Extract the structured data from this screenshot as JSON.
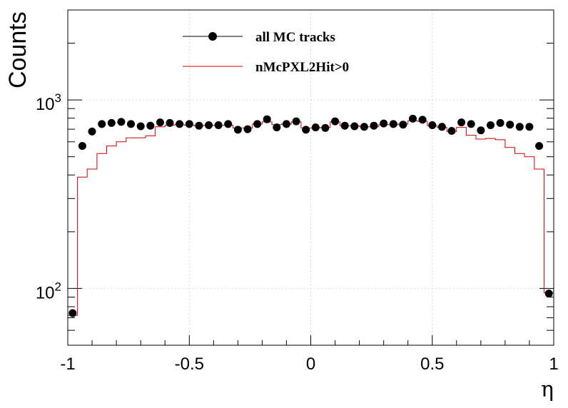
{
  "chart_data": {
    "type": "line",
    "title": "",
    "xlabel": "η",
    "ylabel": "Counts",
    "xlim": [
      -1,
      1
    ],
    "ylim": [
      50,
      3000
    ],
    "yscale": "log",
    "grid": true,
    "legend_position": "top-center",
    "x_ticks": [
      {
        "value": -1,
        "label": "-1"
      },
      {
        "value": -0.5,
        "label": "-0.5"
      },
      {
        "value": 0,
        "label": "0"
      },
      {
        "value": 0.5,
        "label": "0.5"
      },
      {
        "value": 1,
        "label": "1"
      }
    ],
    "y_ticks": [
      {
        "value": 100,
        "base": "10",
        "exp": "2"
      },
      {
        "value": 1000,
        "base": "10",
        "exp": "3"
      }
    ],
    "bin_edges": [
      -1.0,
      -0.96,
      -0.92,
      -0.88,
      -0.84,
      -0.8,
      -0.76,
      -0.72,
      -0.68,
      -0.64,
      -0.6,
      -0.56,
      -0.52,
      -0.48,
      -0.44,
      -0.4,
      -0.36,
      -0.32,
      -0.28,
      -0.24,
      -0.2,
      -0.16,
      -0.12,
      -0.08,
      -0.04,
      0.0,
      0.04,
      0.08,
      0.12,
      0.16,
      0.2,
      0.24,
      0.28,
      0.32,
      0.36,
      0.4,
      0.44,
      0.48,
      0.52,
      0.56,
      0.6,
      0.64,
      0.68,
      0.72,
      0.76,
      0.8,
      0.84,
      0.88,
      0.92,
      0.96,
      1.0
    ],
    "series": [
      {
        "name": "all MC tracks",
        "style": "markers",
        "color": "#000000",
        "x": [
          -0.98,
          -0.94,
          -0.9,
          -0.86,
          -0.82,
          -0.78,
          -0.74,
          -0.7,
          -0.66,
          -0.62,
          -0.58,
          -0.54,
          -0.5,
          -0.46,
          -0.42,
          -0.38,
          -0.34,
          -0.3,
          -0.26,
          -0.22,
          -0.18,
          -0.14,
          -0.1,
          -0.06,
          -0.02,
          0.02,
          0.06,
          0.1,
          0.14,
          0.18,
          0.22,
          0.26,
          0.3,
          0.34,
          0.38,
          0.42,
          0.46,
          0.5,
          0.54,
          0.58,
          0.62,
          0.66,
          0.7,
          0.74,
          0.78,
          0.82,
          0.86,
          0.9,
          0.94,
          0.98
        ],
        "values": [
          74,
          570,
          680,
          745,
          755,
          765,
          745,
          725,
          730,
          760,
          755,
          745,
          745,
          730,
          735,
          735,
          745,
          695,
          700,
          745,
          790,
          715,
          745,
          770,
          695,
          715,
          710,
          770,
          730,
          725,
          720,
          730,
          750,
          745,
          740,
          795,
          785,
          735,
          720,
          685,
          760,
          745,
          690,
          735,
          755,
          740,
          720,
          720,
          570,
          94
        ]
      },
      {
        "name": "nMcPXL2Hit>0",
        "style": "step",
        "color": "#d40000",
        "values": [
          72,
          390,
          430,
          520,
          570,
          600,
          630,
          630,
          645,
          720,
          735,
          740,
          735,
          730,
          735,
          735,
          735,
          710,
          710,
          745,
          765,
          740,
          745,
          765,
          710,
          710,
          715,
          765,
          730,
          730,
          720,
          720,
          740,
          740,
          745,
          775,
          770,
          730,
          715,
          680,
          715,
          650,
          620,
          625,
          615,
          560,
          520,
          500,
          430,
          95
        ]
      }
    ]
  }
}
